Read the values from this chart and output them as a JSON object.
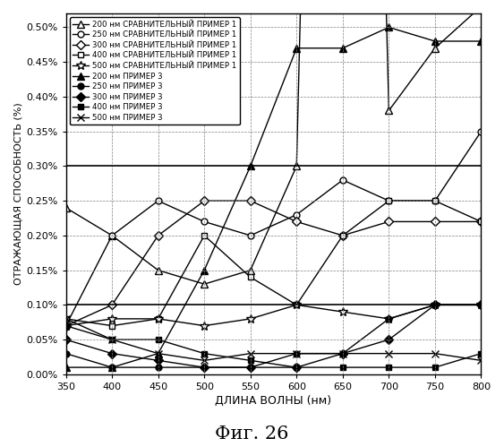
{
  "x": [
    350,
    400,
    450,
    500,
    550,
    600,
    650,
    700,
    750,
    800
  ],
  "series": {
    "comp1_200": [
      0.0024,
      0.002,
      0.0015,
      0.0013,
      0.0015,
      0.003,
      0.03,
      0.0038,
      0.0047,
      0.0053
    ],
    "comp1_250": [
      0.0007,
      0.002,
      0.0025,
      0.0022,
      0.002,
      0.0023,
      0.0028,
      0.0025,
      0.0025,
      0.0035
    ],
    "comp1_300": [
      0.0007,
      0.001,
      0.002,
      0.0025,
      0.0025,
      0.0022,
      0.002,
      0.0022,
      0.0022,
      0.0022
    ],
    "comp1_400": [
      0.0008,
      0.0007,
      0.0008,
      0.002,
      0.0014,
      0.001,
      0.002,
      0.0025,
      0.0025,
      0.0022
    ],
    "comp1_500": [
      0.0007,
      0.0008,
      0.0008,
      0.0007,
      0.0008,
      0.001,
      0.0009,
      0.0008,
      0.001,
      0.001
    ],
    "ex3_200": [
      0.0001,
      0.0001,
      0.0003,
      0.0015,
      0.003,
      0.0047,
      0.0047,
      0.005,
      0.0048,
      0.0048
    ],
    "ex3_250": [
      0.0003,
      0.0001,
      0.0001,
      0.0001,
      0.0001,
      0.0003,
      0.0003,
      0.0008,
      0.001,
      0.001
    ],
    "ex3_300": [
      0.0005,
      0.0003,
      0.0002,
      0.0001,
      0.0001,
      0.0001,
      0.0003,
      0.0005,
      0.001,
      0.001
    ],
    "ex3_400": [
      0.0007,
      0.0005,
      0.0005,
      0.0003,
      0.0002,
      0.0001,
      0.0001,
      0.0001,
      0.0001,
      0.0003
    ],
    "ex3_500": [
      0.0008,
      0.0005,
      0.0003,
      0.0002,
      0.0003,
      0.0003,
      0.0003,
      0.0003,
      0.0003,
      0.0002
    ]
  },
  "legend_labels": [
    "200 нм СРАВНИТЕЛЬНЫЙ ПРИМЕР 1",
    "250 нм СРАВНИТЕЛЬНЫЙ ПРИМЕР 1",
    "300 нм СРАВНИТЕЛЬНЫЙ ПРИМЕР 1",
    "400 нм СРАВНИТЕЛЬНЫЙ ПРИМЕР 1",
    "500 нм СРАВНИТЕЛЬНЫЙ ПРИМЕР 1",
    "200 нм ПРИМЕР 3",
    "250 нм ПРИМЕР 3",
    "300 нм ПРИМЕР 3",
    "400 нм ПРИМЕР 3",
    "500 нм ПРИМЕР 3"
  ],
  "markers": [
    "^",
    "o",
    "D",
    "s",
    "*",
    "^",
    "o",
    "D",
    "s",
    "x"
  ],
  "fillstyles": [
    "none",
    "none",
    "none",
    "none",
    "none",
    "full",
    "full",
    "full",
    "full",
    "full"
  ],
  "xlabel": "ДЛИНА ВОЛНЫ (нм)",
  "ylabel": "ОТРАЖАЮЩАЯ СПОСОБНОСТЬ (%)",
  "title": "Фиг. 26",
  "xlim": [
    350,
    800
  ],
  "ylim": [
    0.0,
    0.0052
  ],
  "xticks": [
    350,
    400,
    450,
    500,
    550,
    600,
    650,
    700,
    750,
    800
  ],
  "yticks": [
    0.0,
    0.0005,
    0.001,
    0.0015,
    0.002,
    0.0025,
    0.003,
    0.0035,
    0.004,
    0.0045,
    0.005
  ],
  "ytick_labels": [
    "0.00%",
    "0.05%",
    "0.10%",
    "0.15%",
    "0.20%",
    "0.25%",
    "0.30%",
    "0.35%",
    "0.40%",
    "0.45%",
    "0.50%"
  ],
  "hlines_thick": [
    0.001,
    0.003
  ],
  "background_color": "#ffffff"
}
